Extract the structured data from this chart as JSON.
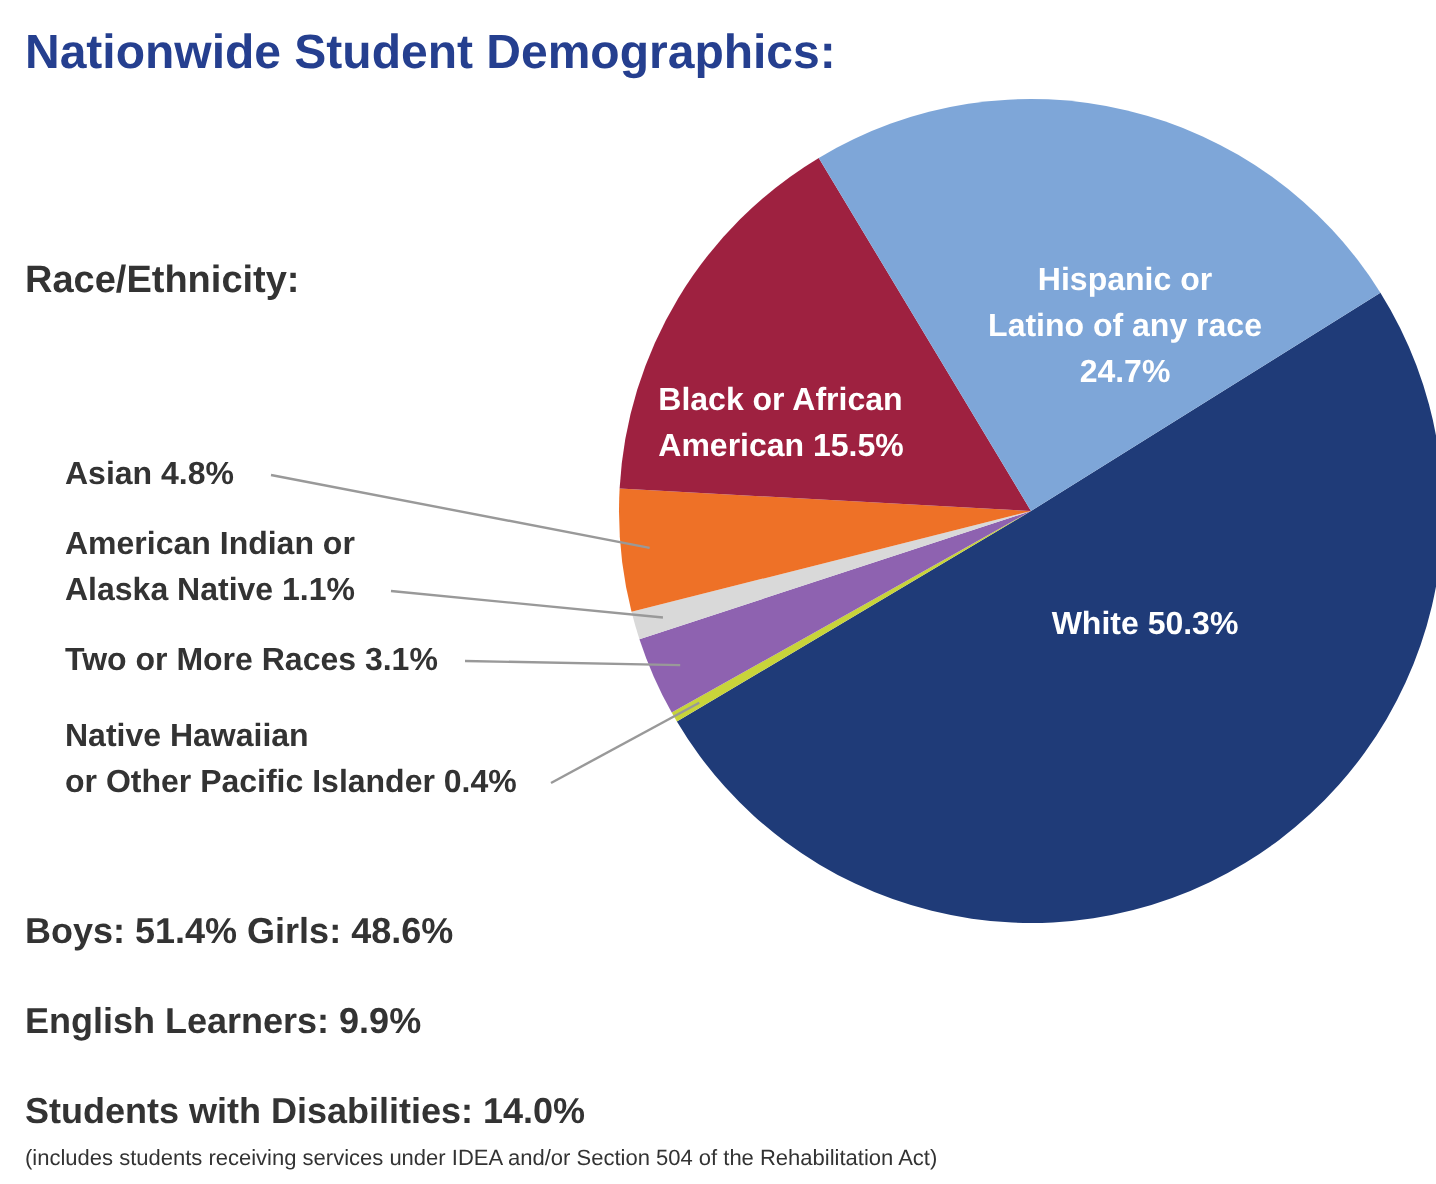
{
  "chart_data": {
    "type": "pie",
    "title": "Nationwide Student Demographics:",
    "subtitle": "Race/Ethnicity:",
    "categories": [
      "White",
      "Native Hawaiian or Other Pacific Islander",
      "Two or More Races",
      "American Indian or Alaska Native",
      "Asian",
      "Black or African American",
      "Hispanic or Latino of any race"
    ],
    "values": [
      50.3,
      0.4,
      3.1,
      1.1,
      4.8,
      15.5,
      24.7
    ],
    "value_labels": [
      "50.3%",
      "0.4%",
      "3.1%",
      "1.1%",
      "4.8%",
      "15.5%",
      "24.7%"
    ],
    "colors": [
      "#1f3b78",
      "#c8d43a",
      "#8e62b0",
      "#d9d9d9",
      "#ee7127",
      "#9e2140",
      "#7ea6d8"
    ],
    "legend": false,
    "annotations": [
      "Boys: 51.4%   Girls: 48.6%",
      "English Learners: 9.9%",
      "Students with Disabilities: 14.0%",
      "(includes students receiving services under IDEA and/or Section 504 of the Rehabilitation Act)"
    ]
  }
}
